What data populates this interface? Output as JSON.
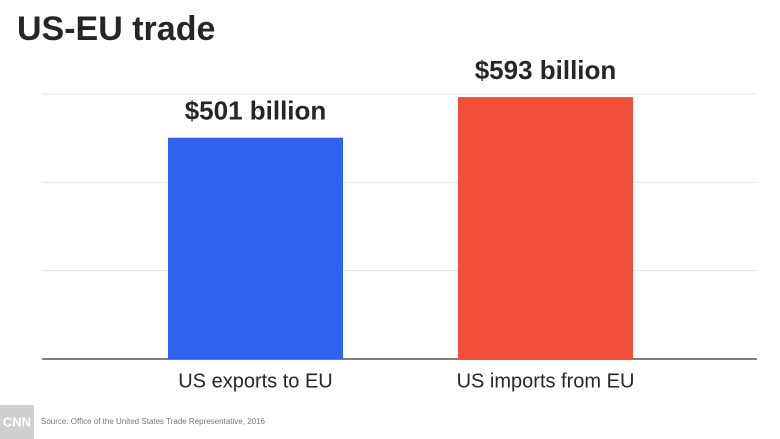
{
  "chart_data": {
    "type": "bar",
    "title": "US-EU trade",
    "categories": [
      "US exports to EU",
      "US imports from EU"
    ],
    "values": [
      501,
      593
    ],
    "value_labels": [
      "$501 billion",
      "$593 billion"
    ],
    "colors": [
      "#3162f0",
      "#f0503a"
    ],
    "ylim": [
      0,
      600
    ],
    "yticks": [
      0,
      200,
      400,
      600
    ],
    "grid": true,
    "source": "Source: Office of the United States Trade Representative, 2016",
    "logo": "CNN"
  }
}
